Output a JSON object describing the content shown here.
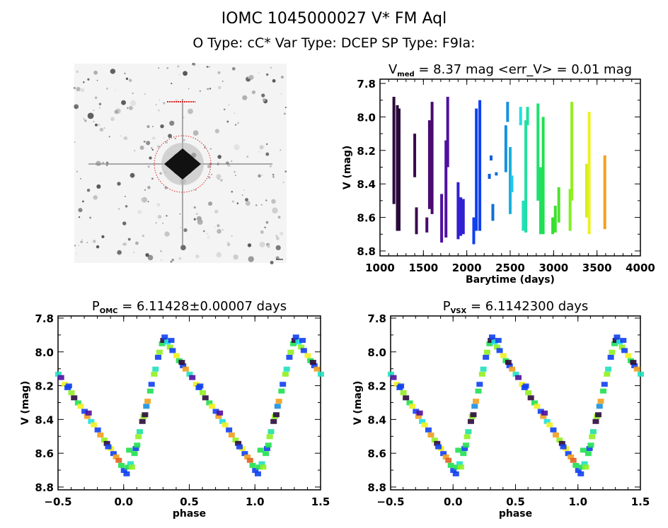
{
  "header": {
    "title": "IOMC 1045000027    V* FM Aql",
    "subtitle": "O Type: cC*   Var Type: DCEP   SP Type: F9Ia:"
  },
  "image_panel": {
    "kind": "sky image cutout (inverted grayscale)",
    "marker_color": "#e02020"
  },
  "chart_data": [
    {
      "type": "scatter",
      "title_main": "V",
      "title_sub": "med",
      "title_rest": " = 8.37 mag <err_V> = 0.01 mag",
      "xlabel": "Barytime (days)",
      "ylabel": "V (mag)",
      "xlim": [
        1000,
        4000
      ],
      "ylim": [
        8.8,
        7.8
      ],
      "y_inverted": true,
      "xticks": [
        "1000",
        "1500",
        "2000",
        "2500",
        "3000",
        "3500",
        "4000"
      ],
      "yticks": [
        "7.8",
        "8.0",
        "8.2",
        "8.4",
        "8.6",
        "8.8"
      ],
      "color_encoding": "time (rainbow, purple to orange)",
      "segments": [
        [
          1160,
          7.88,
          8.52,
          "#2a0a3a"
        ],
        [
          1200,
          7.93,
          8.68,
          "#2a0a3a"
        ],
        [
          1220,
          7.95,
          8.68,
          "#2a0a3a"
        ],
        [
          1400,
          8.1,
          8.36,
          "#3a0a50"
        ],
        [
          1420,
          8.54,
          8.7,
          "#3a0a50"
        ],
        [
          1540,
          8.6,
          8.69,
          "#4a0a70"
        ],
        [
          1570,
          8.02,
          8.55,
          "#4a0a70"
        ],
        [
          1600,
          7.91,
          8.58,
          "#4a0a70"
        ],
        [
          1710,
          8.46,
          8.75,
          "#5010a0"
        ],
        [
          1760,
          8.14,
          8.72,
          "#5010a0"
        ],
        [
          1780,
          7.88,
          8.3,
          "#5010a0"
        ],
        [
          1900,
          8.39,
          8.73,
          "#3020d0"
        ],
        [
          1930,
          8.48,
          8.71,
          "#3020d0"
        ],
        [
          1960,
          8.49,
          8.7,
          "#3020d0"
        ],
        [
          2080,
          8.6,
          8.76,
          "#1040f0"
        ],
        [
          2110,
          7.95,
          8.68,
          "#1040f0"
        ],
        [
          2150,
          7.9,
          8.68,
          "#1040f0"
        ],
        [
          2260,
          8.34,
          8.37,
          "#1060e0"
        ],
        [
          2280,
          8.23,
          8.26,
          "#1060e0"
        ],
        [
          2300,
          8.52,
          8.62,
          "#1070d0"
        ],
        [
          2340,
          8.33,
          8.35,
          "#1070d0"
        ],
        [
          2450,
          8.05,
          8.33,
          "#1890e0"
        ],
        [
          2470,
          7.91,
          8.03,
          "#1890e0"
        ],
        [
          2500,
          8.18,
          8.58,
          "#18b0e0"
        ],
        [
          2520,
          8.35,
          8.45,
          "#20c8e8"
        ],
        [
          2620,
          7.94,
          8.05,
          "#20e0e0"
        ],
        [
          2650,
          8.5,
          8.68,
          "#20e0c0"
        ],
        [
          2680,
          8.02,
          8.69,
          "#20e0a0"
        ],
        [
          2700,
          7.94,
          8.05,
          "#20e0a0"
        ],
        [
          2820,
          7.92,
          8.5,
          "#20e070"
        ],
        [
          2850,
          8.3,
          8.7,
          "#20e060"
        ],
        [
          2880,
          8.0,
          8.7,
          "#20e050"
        ],
        [
          2990,
          8.6,
          8.7,
          "#30e030"
        ],
        [
          3020,
          8.53,
          8.69,
          "#40e030"
        ],
        [
          3060,
          8.42,
          8.63,
          "#50e030"
        ],
        [
          3190,
          8.43,
          8.68,
          "#80f020"
        ],
        [
          3210,
          7.91,
          8.5,
          "#90f020"
        ],
        [
          3380,
          8.28,
          8.6,
          "#d0f020"
        ],
        [
          3410,
          7.97,
          8.7,
          "#f0f020"
        ],
        [
          3590,
          8.23,
          8.67,
          "#f0a020"
        ]
      ]
    },
    {
      "type": "scatter",
      "title_main": "P",
      "title_sub": "OMC",
      "title_rest": " = 6.11428±0.00007 days",
      "xlabel": "phase",
      "ylabel": "V (mag)",
      "xlim": [
        -0.5,
        1.5
      ],
      "ylim": [
        8.8,
        7.8
      ],
      "y_inverted": true,
      "xticks": [
        "-0.5",
        "0.0",
        "0.5",
        "1.0",
        "1.5"
      ],
      "yticks": [
        "7.8",
        "8.0",
        "8.2",
        "8.4",
        "8.6",
        "8.8"
      ]
    },
    {
      "type": "scatter",
      "title_main": "P",
      "title_sub": "VSX",
      "title_rest": " = 6.1142300 days",
      "xlabel": "phase",
      "ylabel": "V (mag)",
      "xlim": [
        -0.5,
        1.5
      ],
      "ylim": [
        8.8,
        7.8
      ],
      "y_inverted": true,
      "xticks": [
        "-0.5",
        "0.0",
        "0.5",
        "1.0",
        "1.5"
      ],
      "yticks": [
        "7.8",
        "8.0",
        "8.2",
        "8.4",
        "8.6",
        "8.8"
      ]
    }
  ],
  "phased_points": [
    [
      0.0,
      8.7,
      "#1040f0"
    ],
    [
      0.02,
      8.72,
      "#1040f0"
    ],
    [
      0.03,
      8.68,
      "#20e050"
    ],
    [
      0.05,
      8.66,
      "#20e0c0"
    ],
    [
      0.06,
      8.68,
      "#90f020"
    ],
    [
      0.08,
      8.6,
      "#20e050"
    ],
    [
      0.09,
      8.57,
      "#1040f0"
    ],
    [
      0.11,
      8.5,
      "#90f020"
    ],
    [
      0.12,
      8.47,
      "#20e0a0"
    ],
    [
      0.14,
      8.41,
      "#2a0a3a"
    ],
    [
      0.15,
      8.38,
      "#90f020"
    ],
    [
      0.17,
      8.32,
      "#1890e0"
    ],
    [
      0.18,
      8.29,
      "#f0a020"
    ],
    [
      0.2,
      8.23,
      "#20e050"
    ],
    [
      0.21,
      8.19,
      "#1040f0"
    ],
    [
      0.23,
      8.13,
      "#90f020"
    ],
    [
      0.24,
      8.1,
      "#20e0c0"
    ],
    [
      0.26,
      8.03,
      "#1040f0"
    ],
    [
      0.27,
      8.0,
      "#90f020"
    ],
    [
      0.29,
      7.95,
      "#20e050"
    ],
    [
      0.3,
      7.93,
      "#2a0a3a"
    ],
    [
      0.31,
      7.91,
      "#1040f0"
    ],
    [
      0.33,
      7.94,
      "#20e0e0"
    ],
    [
      0.35,
      7.97,
      "#90f020"
    ],
    [
      0.37,
      7.99,
      "#1040f0"
    ],
    [
      0.4,
      8.02,
      "#f0f020"
    ],
    [
      0.42,
      8.05,
      "#20e050"
    ],
    [
      0.45,
      8.08,
      "#1040f0"
    ],
    [
      0.47,
      8.1,
      "#f0a020"
    ],
    [
      0.5,
      8.13,
      "#20e0c0"
    ],
    [
      0.52,
      8.15,
      "#5010a0"
    ],
    [
      0.55,
      8.19,
      "#f0f020"
    ],
    [
      0.57,
      8.21,
      "#1040f0"
    ],
    [
      0.6,
      8.24,
      "#90f020"
    ],
    [
      0.62,
      8.27,
      "#2a0a3a"
    ],
    [
      0.65,
      8.3,
      "#20e050"
    ],
    [
      0.67,
      8.32,
      "#f0f020"
    ],
    [
      0.7,
      8.35,
      "#1040f0"
    ],
    [
      0.72,
      8.38,
      "#f0a020"
    ],
    [
      0.75,
      8.41,
      "#20e0e0"
    ],
    [
      0.77,
      8.43,
      "#f0f020"
    ],
    [
      0.8,
      8.46,
      "#1040f0"
    ],
    [
      0.82,
      8.49,
      "#f0a020"
    ],
    [
      0.85,
      8.52,
      "#90f020"
    ],
    [
      0.87,
      8.54,
      "#2a0a3a"
    ],
    [
      0.9,
      8.57,
      "#f0f020"
    ],
    [
      0.92,
      8.6,
      "#1040f0"
    ],
    [
      0.94,
      8.62,
      "#f0a020"
    ],
    [
      0.96,
      8.64,
      "#e06020"
    ],
    [
      0.98,
      8.67,
      "#20e050"
    ],
    [
      0.44,
      8.06,
      "#2a0a3a"
    ],
    [
      0.58,
      8.2,
      "#1040f0"
    ],
    [
      0.73,
      8.36,
      "#5010a0"
    ],
    [
      0.88,
      8.56,
      "#1040f0"
    ],
    [
      0.16,
      8.37,
      "#2a0a3a"
    ],
    [
      0.04,
      8.58,
      "#20e050"
    ],
    [
      0.1,
      8.55,
      "#20e050"
    ],
    [
      0.36,
      7.93,
      "#1040f0"
    ]
  ]
}
